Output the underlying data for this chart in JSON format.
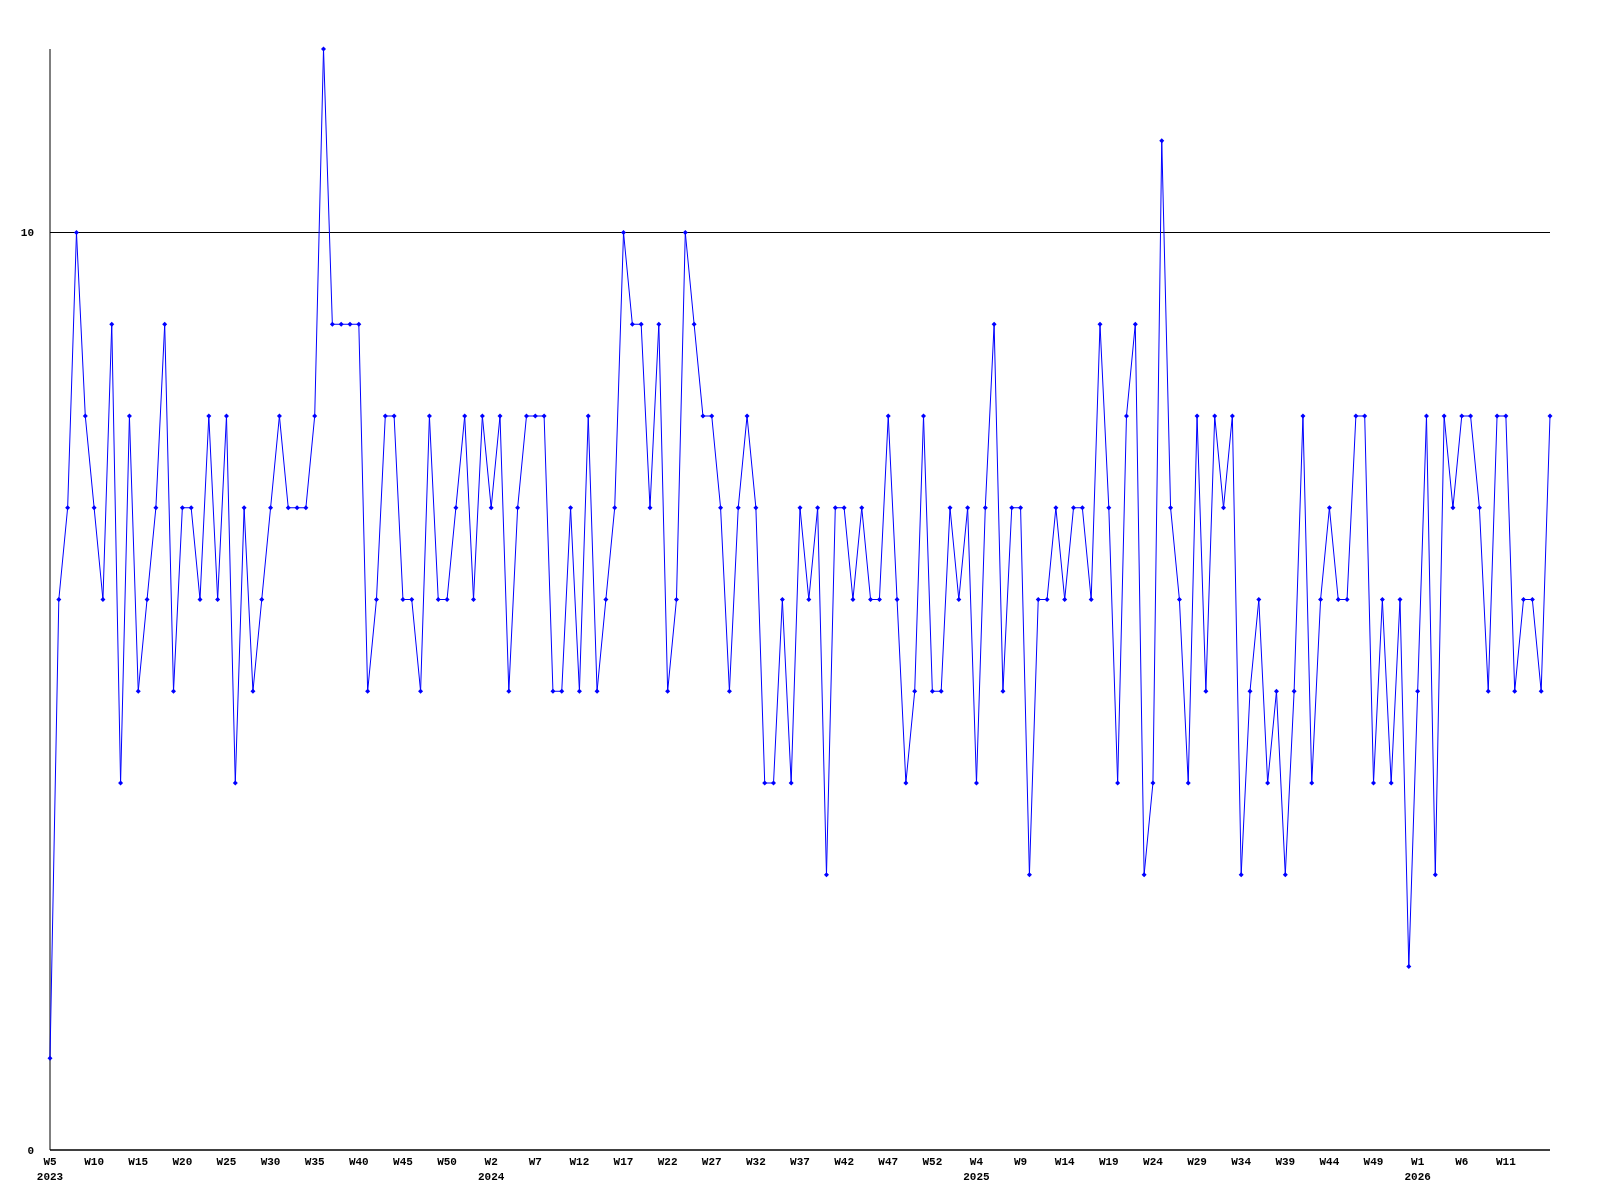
{
  "chart_data": {
    "type": "line",
    "categories": [
      "W5\n2023",
      null,
      null,
      null,
      null,
      "W10",
      null,
      null,
      null,
      null,
      "W15",
      null,
      null,
      null,
      null,
      "W20",
      null,
      null,
      null,
      null,
      "W25",
      null,
      null,
      null,
      null,
      "W30",
      null,
      null,
      null,
      null,
      "W35",
      null,
      null,
      null,
      null,
      "W40",
      null,
      null,
      null,
      null,
      "W45",
      null,
      null,
      null,
      null,
      "W50",
      null,
      null,
      null,
      null,
      "W2\n2024",
      null,
      null,
      null,
      null,
      "W7",
      null,
      null,
      null,
      null,
      "W12",
      null,
      null,
      null,
      null,
      "W17",
      null,
      null,
      null,
      null,
      "W22",
      null,
      null,
      null,
      null,
      "W27",
      null,
      null,
      null,
      null,
      "W32",
      null,
      null,
      null,
      null,
      "W37",
      null,
      null,
      null,
      null,
      "W42",
      null,
      null,
      null,
      null,
      "W47",
      null,
      null,
      null,
      null,
      "W52",
      null,
      null,
      null,
      null,
      "W4\n2025",
      null,
      null,
      null,
      null,
      "W9",
      null,
      null,
      null,
      null,
      "W14",
      null,
      null,
      null,
      null,
      "W19",
      null,
      null,
      null,
      null,
      "W24",
      null,
      null,
      null,
      null,
      "W29",
      null,
      null,
      null,
      null,
      "W34",
      null,
      null,
      null,
      null,
      "W39",
      null,
      null,
      null,
      null,
      "W44",
      null,
      null,
      null,
      null,
      "W49",
      null,
      null,
      null,
      null,
      "W1\n2026",
      null,
      null,
      null,
      null,
      "W6",
      null,
      null,
      null,
      null,
      "W11",
      null,
      null,
      null,
      null,
      null
    ],
    "series": [
      {
        "color": "#0000ff",
        "values": [
          1,
          6,
          7,
          10,
          8,
          7,
          6,
          9,
          4,
          8,
          5,
          6,
          7,
          9,
          5,
          7,
          7,
          6,
          8,
          6,
          8,
          4,
          7,
          5,
          6,
          7,
          8,
          7,
          7,
          7,
          8,
          12,
          9,
          9,
          9,
          9,
          5,
          6,
          8,
          8,
          6,
          6,
          5,
          8,
          6,
          6,
          7,
          8,
          6,
          8,
          7,
          8,
          5,
          7,
          8,
          8,
          8,
          5,
          5,
          7,
          5,
          8,
          5,
          6,
          7,
          10,
          9,
          9,
          7,
          9,
          5,
          6,
          10,
          9,
          8,
          8,
          7,
          5,
          7,
          8,
          7,
          4,
          4,
          6,
          4,
          7,
          6,
          7,
          3,
          7,
          7,
          6,
          7,
          6,
          6,
          8,
          6,
          4,
          5,
          8,
          5,
          5,
          7,
          6,
          7,
          4,
          7,
          9,
          5,
          7,
          7,
          3,
          6,
          6,
          7,
          6,
          7,
          7,
          6,
          9,
          7,
          4,
          8,
          9,
          3,
          4,
          11,
          7,
          6,
          4,
          8,
          5,
          8,
          7,
          8,
          3,
          5,
          6,
          4,
          5,
          3,
          5,
          8,
          4,
          6,
          7,
          6,
          6,
          8,
          8,
          4,
          6,
          4,
          6,
          2,
          5,
          8,
          3,
          8,
          7,
          8,
          8,
          7,
          5,
          8,
          8,
          5,
          6,
          6,
          5,
          8
        ]
      }
    ],
    "ylim": [
      0,
      12
    ],
    "yticks": [
      0,
      10
    ],
    "grid": "y",
    "marker": "diamond",
    "line_style": "solid"
  }
}
